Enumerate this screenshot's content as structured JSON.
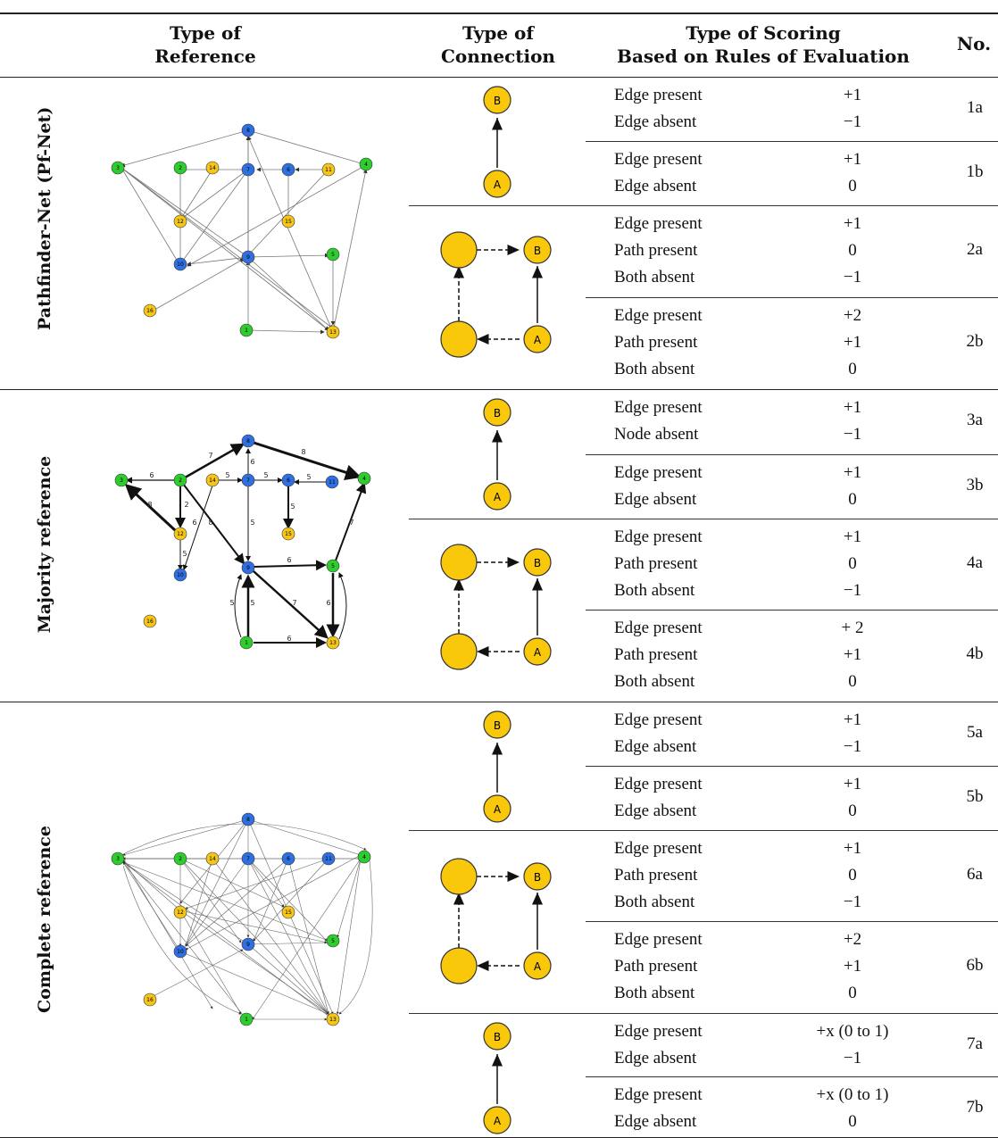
{
  "headers": {
    "reference": [
      "Type of",
      "Reference"
    ],
    "connection": [
      "Type of",
      "Connection"
    ],
    "scoring": [
      "Type of Scoring",
      "Based on Rules of Evaluation"
    ],
    "no": "No."
  },
  "reference_types": [
    "Pathfinder-Net (Pf-Net)",
    "Majority reference",
    "Complete reference"
  ],
  "node_labels": {
    "a": "A",
    "b": "B"
  },
  "rows": [
    {
      "no": "1a",
      "rules": [
        {
          "label": "Edge present",
          "score": "+1"
        },
        {
          "label": "Edge absent",
          "score": "−1"
        }
      ]
    },
    {
      "no": "1b",
      "rules": [
        {
          "label": "Edge present",
          "score": "+1"
        },
        {
          "label": "Edge absent",
          "score": "0"
        }
      ]
    },
    {
      "no": "2a",
      "rules": [
        {
          "label": "Edge present",
          "score": "+1"
        },
        {
          "label": "Path present",
          "score": "0"
        },
        {
          "label": "Both absent",
          "score": "−1"
        }
      ]
    },
    {
      "no": "2b",
      "rules": [
        {
          "label": "Edge present",
          "score": "+2"
        },
        {
          "label": "Path present",
          "score": "+1"
        },
        {
          "label": "Both absent",
          "score": "0"
        }
      ]
    },
    {
      "no": "3a",
      "rules": [
        {
          "label": "Edge present",
          "score": "+1"
        },
        {
          "label": "Node absent",
          "score": "−1"
        }
      ]
    },
    {
      "no": "3b",
      "rules": [
        {
          "label": "Edge present",
          "score": "+1"
        },
        {
          "label": "Edge absent",
          "score": "0"
        }
      ]
    },
    {
      "no": "4a",
      "rules": [
        {
          "label": "Edge present",
          "score": "+1"
        },
        {
          "label": "Path present",
          "score": "0"
        },
        {
          "label": "Both absent",
          "score": "−1"
        }
      ]
    },
    {
      "no": "4b",
      "rules": [
        {
          "label": "Edge present",
          "score": "+ 2"
        },
        {
          "label": "Path present",
          "score": "+1"
        },
        {
          "label": "Both absent",
          "score": "0"
        }
      ]
    },
    {
      "no": "5a",
      "rules": [
        {
          "label": "Edge present",
          "score": "+1"
        },
        {
          "label": "Edge absent",
          "score": "−1"
        }
      ]
    },
    {
      "no": "5b",
      "rules": [
        {
          "label": "Edge present",
          "score": "+1"
        },
        {
          "label": "Edge absent",
          "score": "0"
        }
      ]
    },
    {
      "no": "6a",
      "rules": [
        {
          "label": "Edge present",
          "score": "+1"
        },
        {
          "label": "Path present",
          "score": "0"
        },
        {
          "label": "Both absent",
          "score": "−1"
        }
      ]
    },
    {
      "no": "6b",
      "rules": [
        {
          "label": "Edge present",
          "score": "+2"
        },
        {
          "label": "Path present",
          "score": "+1"
        },
        {
          "label": "Both absent",
          "score": "0"
        }
      ]
    },
    {
      "no": "7a",
      "rules": [
        {
          "label": "Edge present",
          "score": "+x (0 to 1)"
        },
        {
          "label": "Edge absent",
          "score": "−1"
        }
      ]
    },
    {
      "no": "7b",
      "rules": [
        {
          "label": "Edge present",
          "score": "+x (0 to 1)"
        },
        {
          "label": "Edge absent",
          "score": "0"
        }
      ]
    }
  ],
  "graph_node_ids": [
    "1",
    "2",
    "3",
    "4",
    "5",
    "6",
    "7",
    "8",
    "9",
    "10",
    "11",
    "12",
    "13",
    "14",
    "15",
    "16"
  ],
  "majority_edge_weights": [
    "6",
    "7",
    "8",
    "8",
    "2",
    "5",
    "5",
    "5",
    "5",
    "6",
    "5",
    "8",
    "6",
    "5",
    "6",
    "7",
    "7",
    "6",
    "6",
    "5",
    "5"
  ],
  "colors": {
    "green": "#2ecc2e",
    "blue": "#2f6fe0",
    "yellow": "#f5c518",
    "node_yellow_connection": "#fac80a"
  }
}
